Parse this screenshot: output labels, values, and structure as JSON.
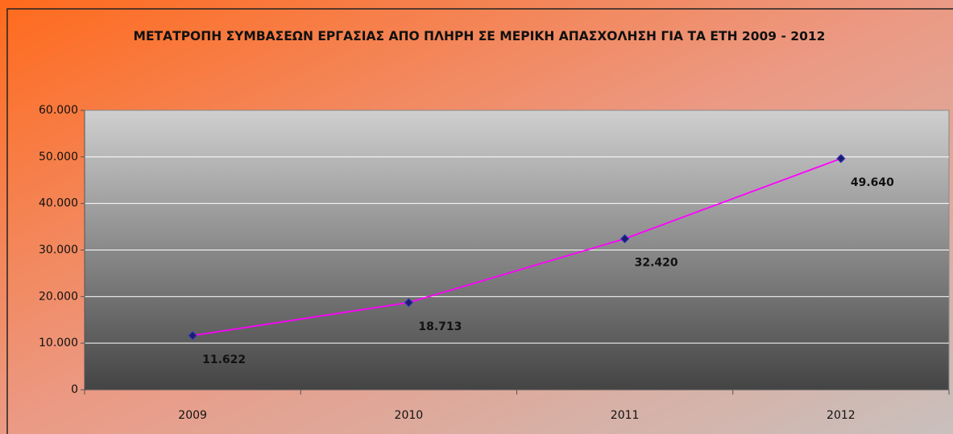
{
  "chart_data": {
    "type": "line",
    "title": "ΜΕΤΑΤΡΟΠΗ ΣΥΜΒΑΣΕΩΝ ΕΡΓΑΣΙΑΣ ΑΠΟ ΠΛΗΡΗ ΣΕ ΜΕΡΙΚΗ ΑΠΑΣΧΟΛΗΣΗ ΓΙΑ ΤΑ ΕΤΗ 2009 - 2012",
    "categories": [
      "2009",
      "2010",
      "2011",
      "2012"
    ],
    "values": [
      11622,
      18713,
      32420,
      49640
    ],
    "value_labels": [
      "11.622",
      "18.713",
      "32.420",
      "49.640"
    ],
    "color": "#ff00ff",
    "marker_color": "#1c1c70",
    "label_color": "#a3420c",
    "ylim": [
      0,
      60000
    ],
    "yticks": [
      0,
      {
        "value": 10000,
        "label": "10.000"
      },
      {
        "value": 20000,
        "label": "20.000"
      },
      {
        "value": 30000,
        "label": "30.000"
      },
      {
        "value": 40000,
        "label": "40.000"
      },
      {
        "value": 50000,
        "label": "50.000"
      },
      {
        "value": 60000,
        "label": "60.000"
      }
    ],
    "grid": true
  }
}
